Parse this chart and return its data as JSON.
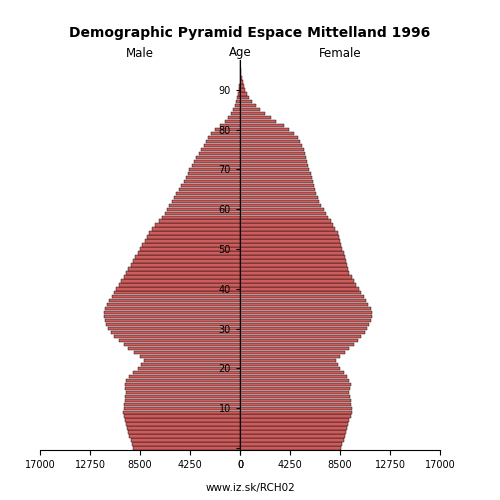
{
  "title": "Demographic Pyramid Espace Mittelland 1996",
  "male_label": "Male",
  "female_label": "Female",
  "age_label": "Age",
  "footer": "www.iz.sk/RCH02",
  "xlim": 17000,
  "bar_color": "#CD5C5C",
  "bar_edge_color": "#000000",
  "ages": [
    0,
    1,
    2,
    3,
    4,
    5,
    6,
    7,
    8,
    9,
    10,
    11,
    12,
    13,
    14,
    15,
    16,
    17,
    18,
    19,
    20,
    21,
    22,
    23,
    24,
    25,
    26,
    27,
    28,
    29,
    30,
    31,
    32,
    33,
    34,
    35,
    36,
    37,
    38,
    39,
    40,
    41,
    42,
    43,
    44,
    45,
    46,
    47,
    48,
    49,
    50,
    51,
    52,
    53,
    54,
    55,
    56,
    57,
    58,
    59,
    60,
    61,
    62,
    63,
    64,
    65,
    66,
    67,
    68,
    69,
    70,
    71,
    72,
    73,
    74,
    75,
    76,
    77,
    78,
    79,
    80,
    81,
    82,
    83,
    84,
    85,
    86,
    87,
    88,
    89,
    90,
    91,
    92,
    93,
    94,
    95,
    96,
    97
  ],
  "male": [
    9100,
    9200,
    9300,
    9400,
    9500,
    9600,
    9700,
    9800,
    9900,
    9950,
    9900,
    9850,
    9800,
    9750,
    9700,
    9750,
    9800,
    9700,
    9400,
    9100,
    8700,
    8400,
    8200,
    8500,
    9000,
    9500,
    9900,
    10300,
    10700,
    11000,
    11200,
    11400,
    11500,
    11600,
    11600,
    11500,
    11300,
    11100,
    10900,
    10700,
    10500,
    10300,
    10100,
    9900,
    9700,
    9500,
    9300,
    9100,
    8900,
    8700,
    8500,
    8300,
    8100,
    7900,
    7700,
    7500,
    7200,
    6900,
    6600,
    6400,
    6200,
    6000,
    5800,
    5600,
    5400,
    5200,
    5000,
    4800,
    4600,
    4400,
    4300,
    4100,
    3900,
    3700,
    3500,
    3300,
    3100,
    2900,
    2700,
    2500,
    2100,
    1700,
    1300,
    1000,
    750,
    580,
    440,
    320,
    220,
    140,
    90,
    55,
    35,
    20,
    12,
    7,
    4,
    2
  ],
  "female": [
    8600,
    8700,
    8800,
    8900,
    9000,
    9100,
    9200,
    9300,
    9400,
    9500,
    9500,
    9450,
    9400,
    9350,
    9300,
    9350,
    9400,
    9300,
    9100,
    8800,
    8500,
    8300,
    8200,
    8500,
    8900,
    9300,
    9700,
    10000,
    10300,
    10600,
    10800,
    11000,
    11100,
    11200,
    11200,
    11100,
    10900,
    10700,
    10500,
    10300,
    10100,
    9900,
    9700,
    9500,
    9300,
    9200,
    9100,
    9000,
    8900,
    8800,
    8700,
    8600,
    8500,
    8400,
    8300,
    8100,
    7900,
    7700,
    7500,
    7300,
    7100,
    6900,
    6700,
    6600,
    6500,
    6400,
    6300,
    6200,
    6100,
    6000,
    5900,
    5800,
    5700,
    5600,
    5500,
    5400,
    5300,
    5100,
    4900,
    4600,
    4200,
    3700,
    3100,
    2600,
    2100,
    1700,
    1350,
    1050,
    800,
    600,
    440,
    320,
    230,
    160,
    105,
    65,
    38,
    22
  ]
}
